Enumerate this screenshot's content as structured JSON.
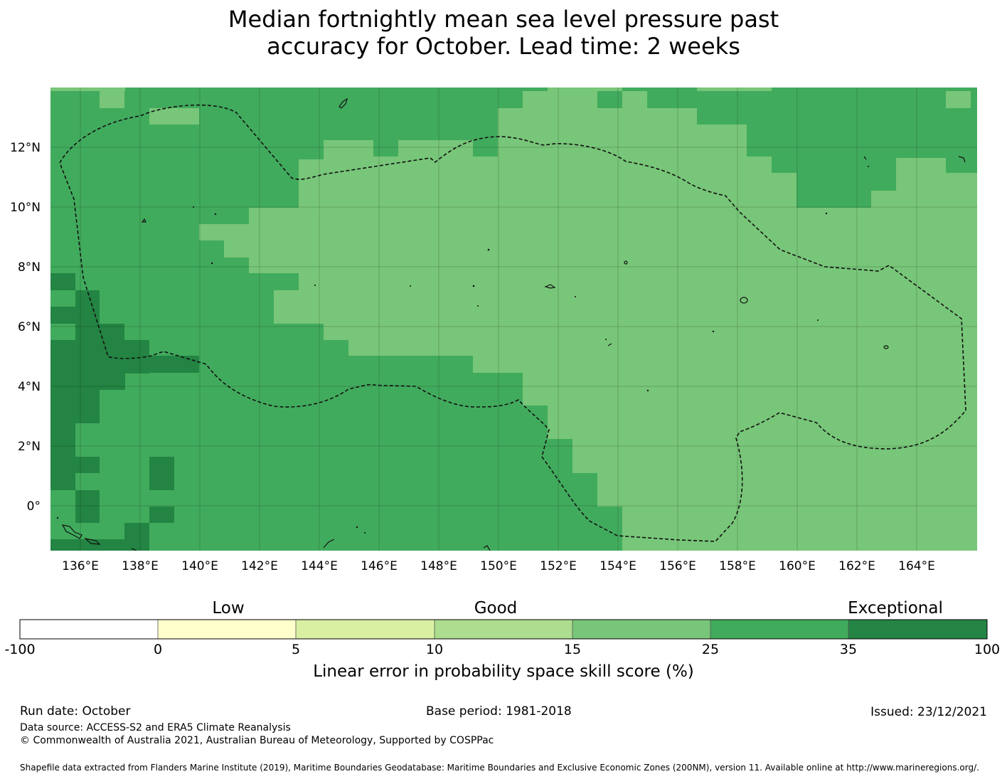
{
  "title": {
    "line1": "Median fortnightly mean sea level pressure past",
    "line2": "accuracy for October. Lead time: 2 weeks"
  },
  "map": {
    "lon_range": [
      135,
      166
    ],
    "lat_range": [
      -1.5,
      14
    ],
    "x_ticks": [
      "136°E",
      "138°E",
      "140°E",
      "142°E",
      "144°E",
      "146°E",
      "148°E",
      "150°E",
      "152°E",
      "154°E",
      "156°E",
      "158°E",
      "160°E",
      "162°E",
      "164°E"
    ],
    "x_tick_values": [
      136,
      138,
      140,
      142,
      144,
      146,
      148,
      150,
      152,
      154,
      156,
      158,
      160,
      162,
      164
    ],
    "y_ticks": [
      "12°N",
      "10°N",
      "8°N",
      "6°N",
      "4°N",
      "2°N",
      "0°"
    ],
    "y_tick_values": [
      12,
      10,
      8,
      6,
      4,
      2,
      0
    ],
    "fill_colors": {
      "10-15": "#acdd8e",
      "15-25": "#78c679",
      "25-35": "#41ab5d",
      "35-100": "#238443"
    },
    "regions": [
      {
        "class": "15-25",
        "description": "central and eastern skill area"
      },
      {
        "class": "25-35",
        "description": "western, north-eastern and southern belts"
      },
      {
        "class": "35-100",
        "description": "far western coastal cells"
      }
    ],
    "line_color": "#222222"
  },
  "colorbar": {
    "category_labels": [
      "Low",
      "Good",
      "Exceptional"
    ],
    "bounds": [
      "-100",
      "0",
      "5",
      "10",
      "15",
      "25",
      "35",
      "100"
    ],
    "colors": [
      "#ffffff",
      "#ffffcc",
      "#d9f0a3",
      "#addd8e",
      "#78c679",
      "#41ab5d",
      "#238443"
    ],
    "label": "Linear error in probability space skill score (%)"
  },
  "footer": {
    "run_date": "Run date: October",
    "base_period": "Base period: 1981-2018",
    "issued": "Issued: 23/12/2021",
    "data_source": "Data source: ACCESS-S2 and ERA5 Climate Reanalysis",
    "copyright": "© Commonwealth of Australia 2021, Australian Bureau of Meteorology, Supported by COSPPac",
    "shapefile": "Shapefile data extracted from Flanders Marine Institute (2019), Maritime Boundaries Geodatabase: Maritime Boundaries and Exclusive Economic Zones (200NM), version 11. Available online at http://www.marineregions.org/."
  }
}
